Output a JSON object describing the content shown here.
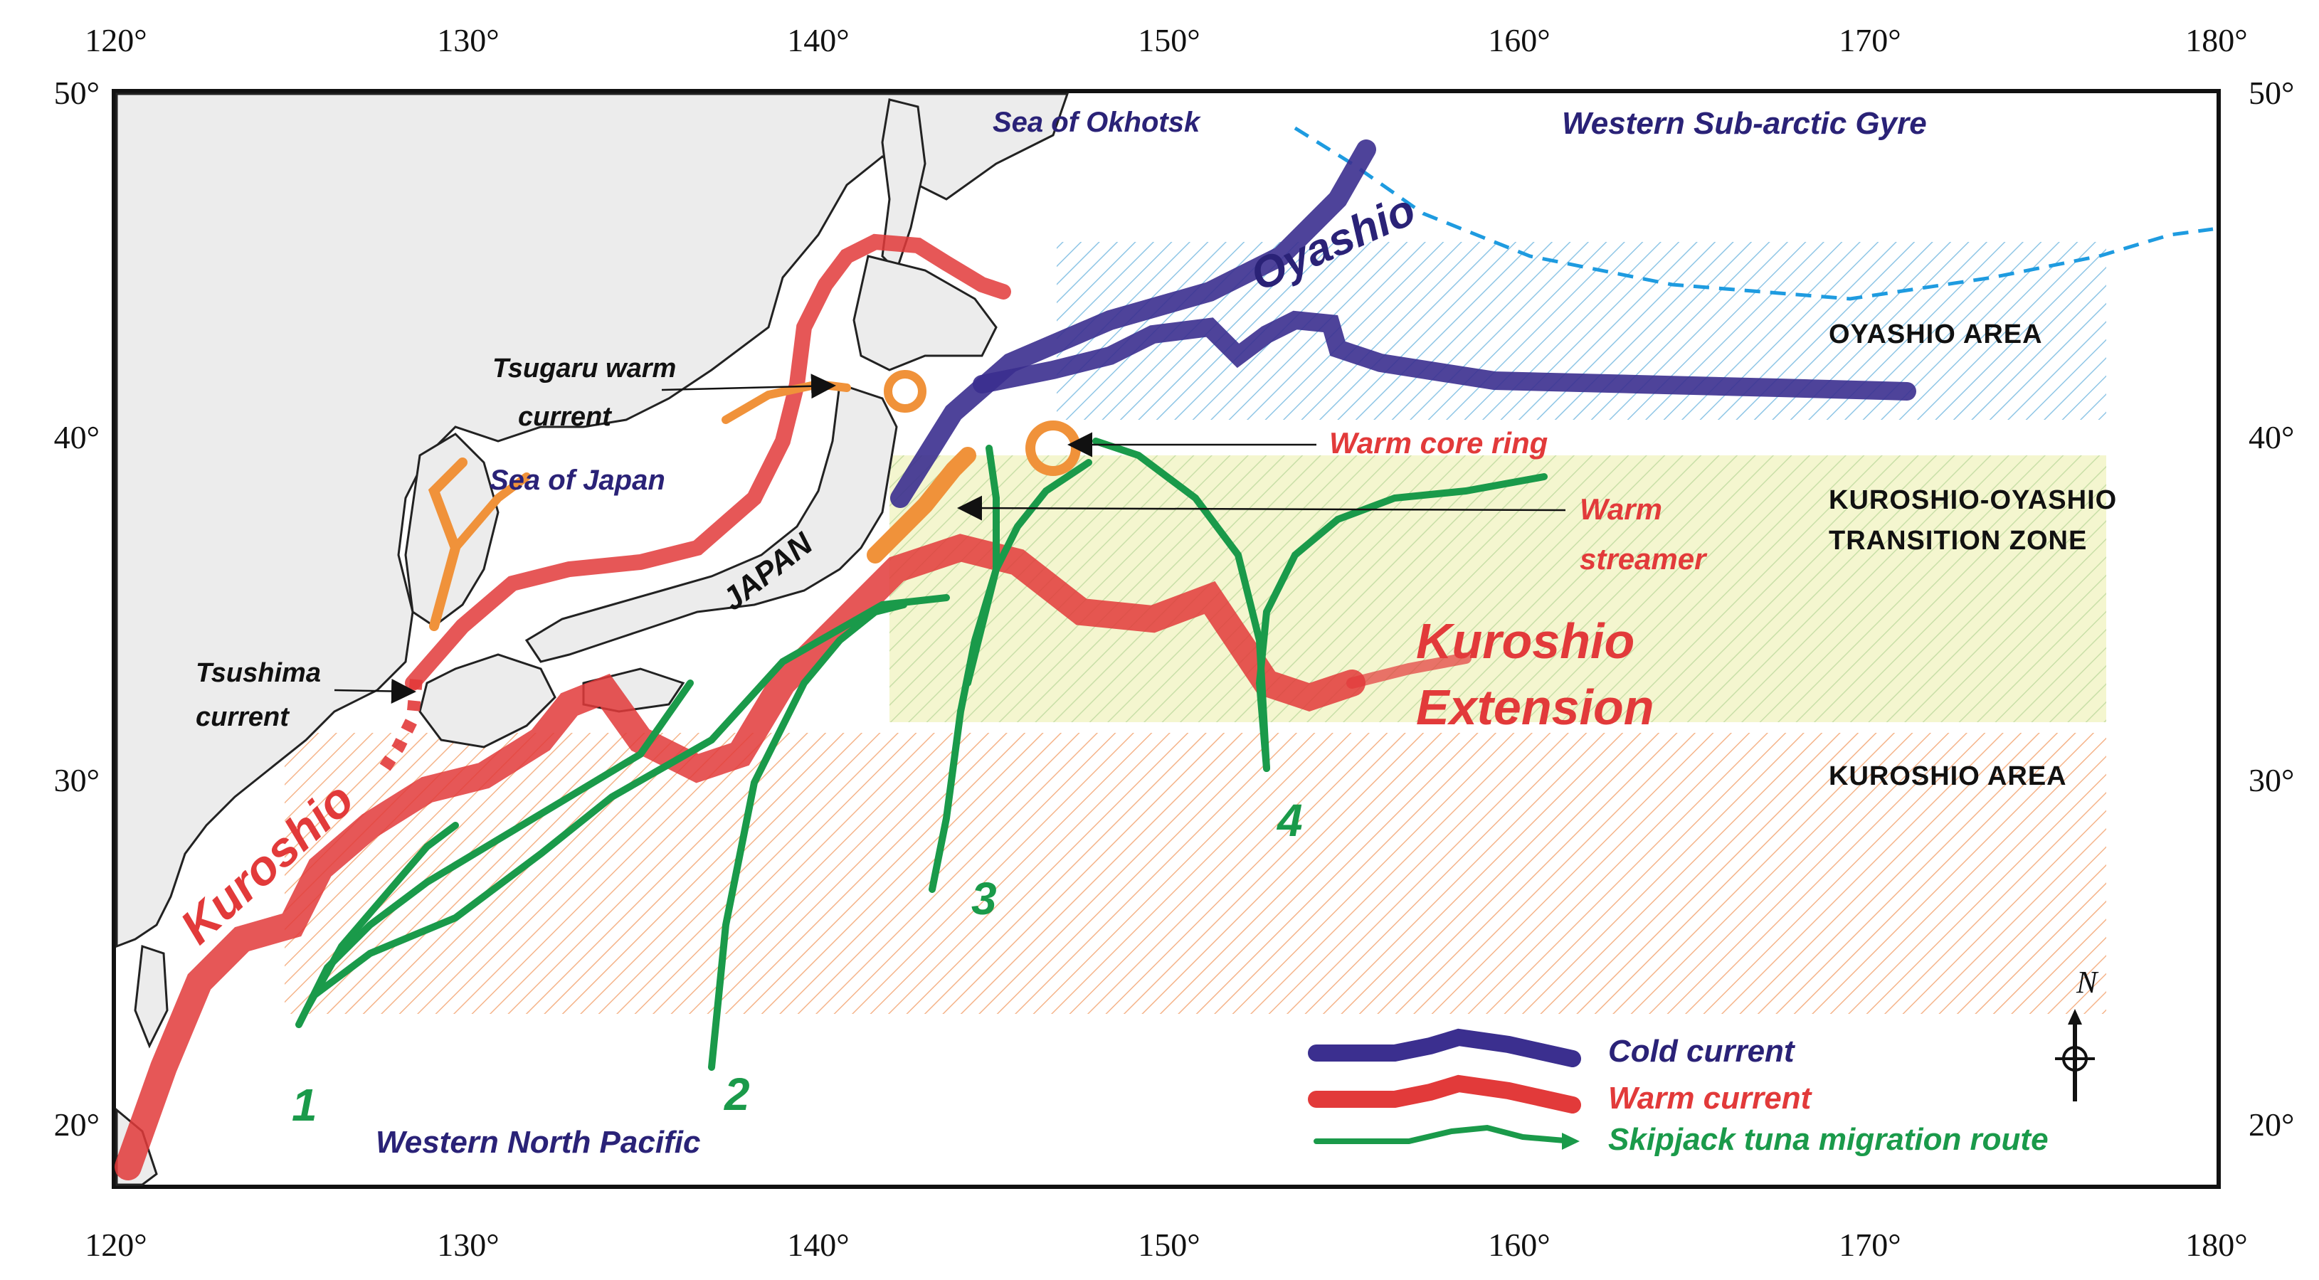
{
  "axes": {
    "x_ticks": [
      "120°",
      "130°",
      "140°",
      "150°",
      "160°",
      "170°",
      "180°"
    ],
    "y_ticks": [
      "50°",
      "40°",
      "30°",
      "20°"
    ]
  },
  "regions": {
    "sea_of_okhotsk": "Sea of Okhotsk",
    "western_subarctic_gyre": "Western Sub-arctic Gyre",
    "sea_of_japan": "Sea of Japan",
    "japan": "JAPAN",
    "western_north_pacific": "Western North Pacific"
  },
  "currents": {
    "oyashio": "Oyashio",
    "kuroshio": "Kuroshio",
    "kuroshio_extension_line1": "Kuroshio",
    "kuroshio_extension_line2": "Extension",
    "tsugaru_line1": "Tsugaru warm",
    "tsugaru_line2": "current",
    "tsushima_line1": "Tsushima",
    "tsushima_line2": "current",
    "warm_core_ring": "Warm core ring",
    "warm_streamer_line1": "Warm",
    "warm_streamer_line2": "streamer"
  },
  "zones": {
    "oyashio_area": "OYASHIO AREA",
    "transition_line1": "KUROSHIO-OYASHIO",
    "transition_line2": "TRANSITION ZONE",
    "kuroshio_area": "KUROSHIO AREA"
  },
  "routes": [
    "1",
    "2",
    "3",
    "4"
  ],
  "compass": {
    "north_label": "N"
  },
  "legend": {
    "cold_current": "Cold current",
    "warm_current": "Warm current",
    "tuna_route": "Skipjack tuna migration route"
  },
  "colors": {
    "cold_current": "#3b2f8f",
    "warm_current": "#e23a3a",
    "warm_streamer": "#f0923a",
    "tuna_route": "#1a9a4a",
    "land": "#ececec",
    "subarctic_boundary": "#1e9be0"
  }
}
